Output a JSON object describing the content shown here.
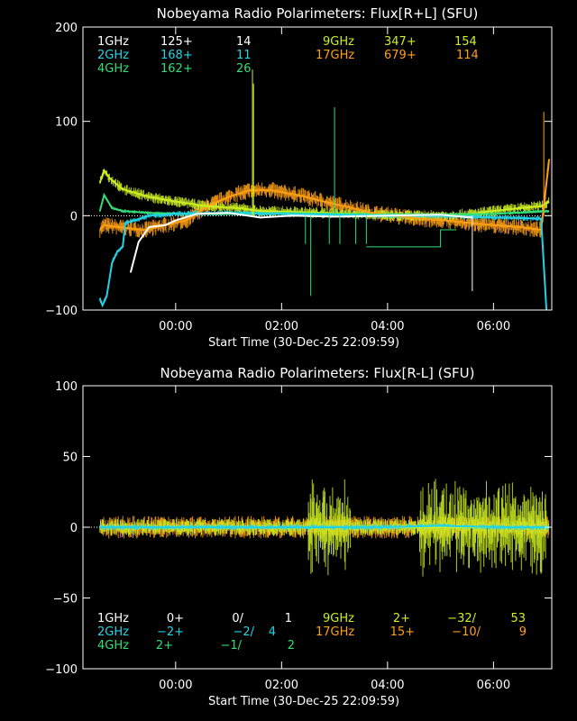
{
  "colors": {
    "1GHz": "#ffffff",
    "2GHz": "#22d3e6",
    "4GHz": "#33dd77",
    "9GHz": "#ccee22",
    "17GHz": "#ffa014"
  },
  "chart_data": [
    {
      "type": "line",
      "title": "Nobeyama Radio Polarimeters: Flux[R+L] (SFU)",
      "xlabel": "Start Time (30-Dec-25 22:09:59)",
      "x_ticks": [
        "00:00",
        "02:00",
        "04:00",
        "06:00"
      ],
      "x_tick_hours": [
        0,
        2,
        4,
        6
      ],
      "xlim_hours": [
        -1.75,
        7.1
      ],
      "ylim": [
        -100,
        200
      ],
      "y_ticks": [
        -100,
        0,
        100,
        200
      ],
      "legend": [
        {
          "band": "1GHz",
          "col1": "125+",
          "col2": "14"
        },
        {
          "band": "2GHz",
          "col1": "168+",
          "col2": "11"
        },
        {
          "band": "4GHz",
          "col1": "162+",
          "col2": "26"
        },
        {
          "band": "9GHz",
          "col1": "347+",
          "col2": "154"
        },
        {
          "band": "17GHz",
          "col1": "679+",
          "col2": "114"
        }
      ],
      "series": [
        {
          "name": "17GHz",
          "x": [
            -1.43,
            -1.35,
            -1.1,
            -0.6,
            0.2,
            0.6,
            1.0,
            1.4,
            1.8,
            2.3,
            2.8,
            3.2,
            3.7,
            4.1,
            4.6,
            5.1,
            5.6,
            6.0,
            6.5,
            6.9,
            7.05
          ],
          "y": [
            -15,
            -10,
            -12,
            -15,
            -5,
            10,
            20,
            27,
            27,
            22,
            15,
            10,
            3,
            0,
            -3,
            -5,
            -8,
            -10,
            -12,
            -15,
            60
          ]
        },
        {
          "name": "9GHz",
          "x": [
            -1.43,
            -1.35,
            -1.25,
            -1.0,
            -0.5,
            0.0,
            0.6,
            1.2,
            1.6,
            2.2,
            2.8,
            3.4,
            4.2,
            5.0,
            5.6,
            6.0,
            6.5,
            6.9,
            7.05
          ],
          "y": [
            35,
            48,
            40,
            28,
            20,
            15,
            10,
            8,
            5,
            4,
            3,
            2,
            0,
            0,
            2,
            5,
            8,
            10,
            15
          ]
        },
        {
          "name": "4GHz",
          "x": [
            -1.43,
            -1.35,
            -1.2,
            -1.0,
            -0.5,
            0.0,
            1.0,
            2.0,
            3.0,
            4.0,
            5.0,
            6.0,
            7.05
          ],
          "y": [
            5,
            22,
            8,
            5,
            3,
            2,
            2,
            3,
            2,
            1,
            1,
            2,
            5
          ]
        },
        {
          "name": "2GHz",
          "x": [
            -1.43,
            -1.38,
            -1.3,
            -1.2,
            -1.1,
            -1.0,
            -0.95,
            -0.5,
            0.0,
            1.0,
            2.0,
            3.0,
            4.0,
            5.0,
            6.0,
            6.9,
            7.0
          ],
          "y": [
            -88,
            -95,
            -85,
            -50,
            -38,
            -33,
            -8,
            0,
            2,
            3,
            2,
            1,
            0,
            0,
            -2,
            -3,
            -100
          ]
        },
        {
          "name": "1GHz",
          "x": [
            -0.85,
            -0.7,
            -0.5,
            -0.2,
            0.0,
            0.4,
            1.0,
            1.6,
            2.2,
            3.0,
            4.0,
            5.0,
            5.6
          ],
          "y": [
            -60,
            -28,
            -12,
            -10,
            -5,
            2,
            3,
            -2,
            0,
            -1,
            0,
            1,
            -2
          ]
        }
      ]
    },
    {
      "type": "line",
      "title": "Nobeyama Radio Polarimeters: Flux[R-L] (SFU)",
      "xlabel": "Start Time (30-Dec-25 22:09:59)",
      "x_ticks": [
        "00:00",
        "02:00",
        "04:00",
        "06:00"
      ],
      "x_tick_hours": [
        0,
        2,
        4,
        6
      ],
      "xlim_hours": [
        -1.75,
        7.1
      ],
      "ylim": [
        -100,
        100
      ],
      "y_ticks": [
        -100,
        -50,
        0,
        50,
        100
      ],
      "legend": [
        {
          "band": "1GHz",
          "col1": "0+",
          "col2": "0/",
          "col3": "1"
        },
        {
          "band": "2GHz",
          "col1": "−2+",
          "col2": "−2/",
          "col3": "4"
        },
        {
          "band": "4GHz",
          "col1": "2+",
          "col2": "−1/",
          "col3": "2"
        },
        {
          "band": "9GHz",
          "col1": "2+",
          "col2": "−32/",
          "col3": "53"
        },
        {
          "band": "17GHz",
          "col1": "15+",
          "col2": "−10/",
          "col3": "9"
        }
      ],
      "series": [
        {
          "name": "17GHz",
          "x": [
            -1.43,
            0,
            1,
            2,
            3,
            4,
            5,
            6,
            7.05
          ],
          "y": [
            0,
            0,
            0,
            0,
            0,
            0,
            0,
            0,
            0
          ]
        },
        {
          "name": "9GHz",
          "x": [
            -1.43,
            0,
            1,
            2,
            3,
            4,
            5,
            6,
            7.05
          ],
          "y": [
            0,
            0,
            0,
            0,
            0,
            0,
            0,
            0,
            0
          ]
        },
        {
          "name": "2GHz",
          "x": [
            -1.43,
            0,
            1,
            2,
            3,
            4,
            5,
            6,
            7.05
          ],
          "y": [
            0,
            0,
            0,
            0,
            0,
            0,
            1,
            0,
            0
          ]
        }
      ]
    }
  ]
}
